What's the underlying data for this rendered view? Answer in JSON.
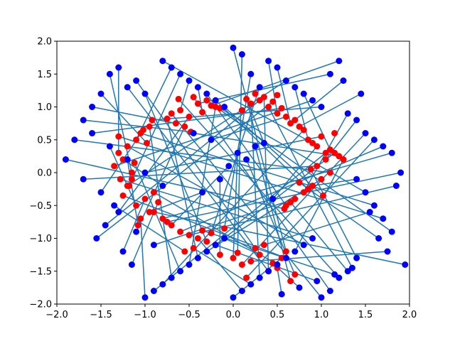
{
  "chart_data": {
    "type": "scatter",
    "title": "",
    "xlabel": "",
    "ylabel": "",
    "xlim": [
      -2.0,
      2.0
    ],
    "ylim": [
      -2.0,
      2.0
    ],
    "grid": false,
    "legend": "none",
    "x_ticks": [
      "−2.0",
      "−1.5",
      "−1.0",
      "−0.5",
      "0.0",
      "0.5",
      "1.0",
      "1.5",
      "2.0"
    ],
    "y_ticks": [
      "−2.0",
      "−1.5",
      "−1.0",
      "−0.5",
      "0.0",
      "0.5",
      "1.0",
      "1.5",
      "2.0"
    ],
    "colors": {
      "red_points": "#ff0000",
      "blue_points": "#0000ff",
      "lines": "#1f77b4"
    },
    "series": [
      {
        "marker": "red",
        "x": [
          -1.3,
          -1.2,
          -1.1,
          -1.25,
          -1.35,
          -1.05,
          -0.95,
          -1.15,
          -1.28,
          -1.18,
          -1.02,
          -0.92,
          -1.3,
          -1.12,
          -0.98,
          -0.7,
          -0.6,
          -0.5,
          -0.4,
          -0.3,
          -0.2,
          -0.65,
          -0.45,
          -0.35,
          -0.55,
          -0.25,
          -0.15,
          -0.75,
          -0.48,
          -0.62,
          0.6,
          0.7,
          0.8,
          0.9,
          1.0,
          1.1,
          0.65,
          0.85,
          0.95,
          1.05,
          0.75,
          1.15,
          0.58,
          0.88,
          1.02,
          0.0,
          0.1,
          0.2,
          0.3,
          0.4,
          0.5,
          0.6,
          0.7,
          0.15,
          0.35,
          0.55,
          0.25,
          0.45,
          0.05,
          0.65,
          -0.6,
          -0.5,
          -0.4,
          -0.3,
          -0.2,
          -0.1,
          -0.7,
          -0.8,
          -0.9,
          -0.45,
          -0.55,
          -0.35,
          -0.25,
          -0.15,
          -0.75,
          0.1,
          0.2,
          0.3,
          0.4,
          0.5,
          0.6,
          0.7,
          0.25,
          0.35,
          0.45,
          0.55,
          0.65,
          0.15,
          0.75,
          0.5,
          -0.9,
          -1.0,
          -1.1,
          -1.2,
          -0.95,
          -1.05,
          -1.15,
          -1.25,
          -0.85,
          -1.08,
          0.85,
          0.95,
          1.05,
          1.15,
          1.25,
          0.9,
          1.0,
          1.1,
          1.2,
          0.8
        ],
        "y": [
          0.3,
          0.4,
          0.5,
          0.2,
          0.1,
          0.6,
          0.7,
          0.0,
          -0.1,
          -0.2,
          0.65,
          0.8,
          0.55,
          0.15,
          0.45,
          0.9,
          0.95,
          0.85,
          1.05,
          1.1,
          1.0,
          0.75,
          1.15,
          0.92,
          0.7,
          1.02,
          0.98,
          0.82,
          0.62,
          1.12,
          -0.5,
          -0.4,
          -0.3,
          -0.2,
          -0.1,
          0.0,
          -0.45,
          -0.25,
          0.1,
          0.2,
          -0.15,
          0.3,
          -0.55,
          0.05,
          -0.35,
          -1.3,
          -1.4,
          -1.35,
          -1.25,
          -1.5,
          -1.45,
          -1.2,
          -1.55,
          -1.6,
          -1.1,
          -1.3,
          -1.15,
          -1.38,
          -1.22,
          -1.65,
          -0.9,
          -0.95,
          -1.0,
          -1.05,
          -1.1,
          -0.85,
          -0.8,
          -0.7,
          -0.6,
          -1.15,
          -1.2,
          -0.88,
          -0.92,
          -1.25,
          -0.75,
          0.95,
          1.05,
          1.1,
          1.0,
          0.9,
          0.85,
          0.8,
          1.2,
          1.15,
          1.08,
          0.98,
          0.75,
          1.12,
          0.7,
          1.18,
          -0.3,
          -0.4,
          -0.5,
          -0.2,
          -0.6,
          -0.7,
          -0.1,
          -0.35,
          -0.45,
          -0.8,
          0.5,
          0.4,
          0.3,
          0.6,
          0.2,
          0.45,
          0.55,
          0.35,
          0.25,
          0.65
        ]
      },
      {
        "marker": "blue",
        "x": [
          -1.3,
          -1.4,
          -1.5,
          -1.6,
          -1.7,
          -1.8,
          -1.9,
          -1.2,
          -1.1,
          -1.0,
          -1.35,
          -1.45,
          -1.55,
          -1.25,
          -1.15,
          -0.8,
          -0.7,
          -0.6,
          -0.5,
          -0.4,
          -0.3,
          -0.2,
          -0.1,
          0.0,
          0.1,
          0.2,
          0.3,
          0.4,
          0.5,
          0.6,
          0.7,
          0.8,
          0.9,
          1.0,
          1.1,
          1.2,
          1.3,
          1.4,
          1.5,
          1.6,
          1.7,
          1.8,
          1.9,
          1.25,
          1.45,
          -1.0,
          -0.9,
          -0.8,
          -0.7,
          -0.6,
          -0.5,
          -0.4,
          -0.3,
          -0.2,
          -0.1,
          0.0,
          0.1,
          0.2,
          0.3,
          0.4,
          0.5,
          0.6,
          0.7,
          0.8,
          0.9,
          1.0,
          1.1,
          1.2,
          1.3,
          1.4,
          0.55,
          0.75,
          0.95,
          1.15,
          1.35,
          -1.6,
          -1.4,
          -1.2,
          -1.0,
          -0.8,
          -1.5,
          -1.3,
          -1.1,
          -0.9,
          -1.7,
          0.05,
          0.15,
          0.25,
          -0.05,
          -0.15,
          -0.25,
          0.35,
          -0.35,
          0.45,
          -0.45,
          1.6,
          1.7,
          1.8,
          1.5,
          1.4,
          1.65,
          1.75,
          1.55,
          1.85,
          1.95
        ],
        "y": [
          1.6,
          1.5,
          1.2,
          1.0,
          0.8,
          0.5,
          0.2,
          1.3,
          1.4,
          1.2,
          -0.5,
          -0.8,
          -1.0,
          -1.2,
          -1.4,
          1.7,
          1.6,
          1.5,
          1.4,
          1.3,
          1.2,
          1.1,
          1.0,
          1.9,
          1.8,
          1.5,
          1.3,
          1.7,
          1.6,
          1.4,
          1.3,
          1.2,
          1.1,
          1.0,
          1.5,
          1.7,
          0.9,
          0.8,
          0.6,
          0.5,
          0.4,
          0.3,
          0.0,
          1.4,
          1.2,
          -1.9,
          -1.8,
          -1.7,
          -1.6,
          -1.5,
          -1.4,
          -1.3,
          -1.2,
          -1.1,
          -1.0,
          -1.9,
          -1.8,
          -1.7,
          -1.6,
          -1.5,
          -1.4,
          -1.3,
          -1.2,
          -1.1,
          -1.0,
          -1.9,
          -1.8,
          -1.6,
          -1.5,
          -1.3,
          -1.85,
          -1.75,
          -1.65,
          -1.55,
          -1.45,
          0.6,
          0.4,
          0.2,
          0.0,
          -0.2,
          -0.3,
          -0.6,
          -0.9,
          -1.1,
          -0.1,
          0.3,
          0.2,
          0.4,
          0.1,
          -0.1,
          0.5,
          0.45,
          -0.3,
          -0.4,
          0.6,
          -0.5,
          -0.7,
          -0.9,
          -0.3,
          -0.1,
          -1.0,
          -1.2,
          -0.6,
          -0.2,
          -1.4
        ]
      }
    ]
  }
}
